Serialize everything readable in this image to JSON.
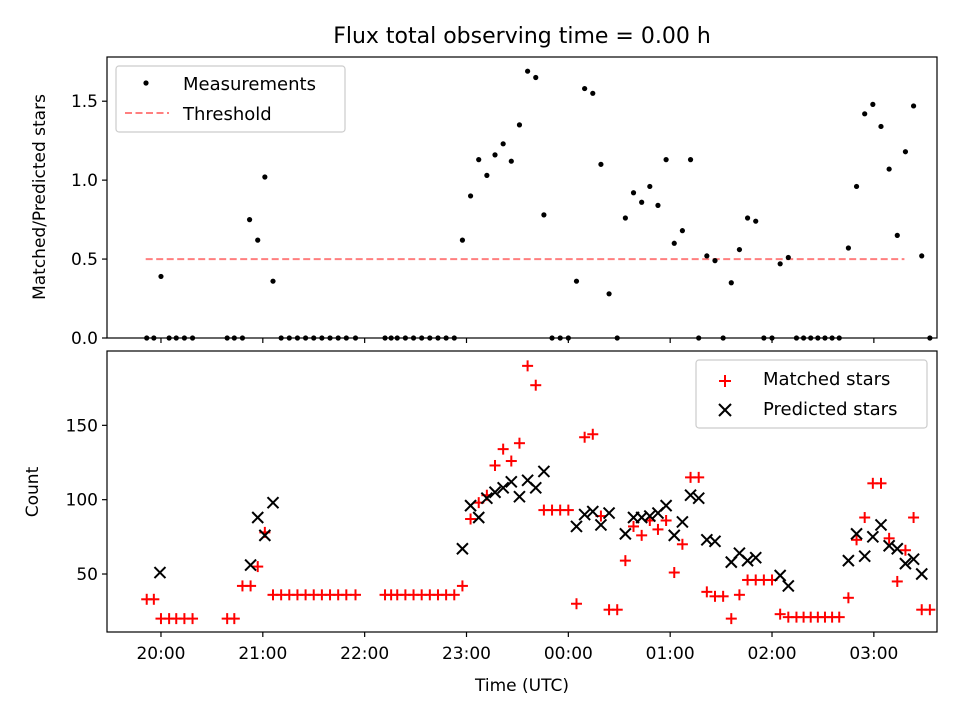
{
  "title": "Flux total observing time = 0.00 h",
  "chart_data": [
    {
      "type": "scatter",
      "ylabel": "Matched/Predicted stars",
      "xlim": [
        19.47,
        27.62
      ],
      "ylim": [
        0,
        1.78
      ],
      "yticks": [
        0.0,
        0.5,
        1.0,
        1.5
      ],
      "ytick_labels": [
        "0.0",
        "0.5",
        "1.0",
        "1.5"
      ],
      "legend_position": "upper left",
      "legend": [
        {
          "label": "Measurements",
          "marker": "dot",
          "color": "#000000"
        },
        {
          "label": "Threshold",
          "marker": "dashed-line",
          "color": "#ff7f7f"
        }
      ],
      "threshold": {
        "value": 0.5,
        "x_range": [
          19.85,
          27.3
        ],
        "color": "#ff7f7f"
      },
      "points": [
        [
          19.86,
          0
        ],
        [
          19.93,
          0
        ],
        [
          20.0,
          0.39
        ],
        [
          20.08,
          0
        ],
        [
          20.15,
          0
        ],
        [
          20.23,
          0
        ],
        [
          20.31,
          0
        ],
        [
          20.65,
          0
        ],
        [
          20.72,
          0
        ],
        [
          20.8,
          0
        ],
        [
          20.87,
          0.75
        ],
        [
          20.95,
          0.62
        ],
        [
          21.02,
          1.02
        ],
        [
          21.1,
          0.36
        ],
        [
          21.18,
          0
        ],
        [
          21.26,
          0
        ],
        [
          21.34,
          0
        ],
        [
          21.42,
          0
        ],
        [
          21.5,
          0
        ],
        [
          21.58,
          0
        ],
        [
          21.66,
          0
        ],
        [
          21.74,
          0
        ],
        [
          21.82,
          0
        ],
        [
          21.91,
          0
        ],
        [
          22.2,
          0
        ],
        [
          22.26,
          0
        ],
        [
          22.32,
          0
        ],
        [
          22.4,
          0
        ],
        [
          22.48,
          0
        ],
        [
          22.56,
          0
        ],
        [
          22.64,
          0
        ],
        [
          22.72,
          0
        ],
        [
          22.8,
          0
        ],
        [
          22.88,
          0
        ],
        [
          22.96,
          0.62
        ],
        [
          23.04,
          0.9
        ],
        [
          23.12,
          1.13
        ],
        [
          23.2,
          1.03
        ],
        [
          23.28,
          1.16
        ],
        [
          23.36,
          1.23
        ],
        [
          23.44,
          1.12
        ],
        [
          23.52,
          1.35
        ],
        [
          23.6,
          1.69
        ],
        [
          23.68,
          1.65
        ],
        [
          23.76,
          0.78
        ],
        [
          23.84,
          0
        ],
        [
          23.92,
          0
        ],
        [
          24.0,
          0
        ],
        [
          24.08,
          0.36
        ],
        [
          24.16,
          1.58
        ],
        [
          24.24,
          1.55
        ],
        [
          24.32,
          1.1
        ],
        [
          24.4,
          0.28
        ],
        [
          24.48,
          0
        ],
        [
          24.56,
          0.76
        ],
        [
          24.64,
          0.92
        ],
        [
          24.72,
          0.86
        ],
        [
          24.8,
          0.96
        ],
        [
          24.88,
          0.84
        ],
        [
          24.96,
          1.13
        ],
        [
          25.04,
          0.6
        ],
        [
          25.12,
          0.68
        ],
        [
          25.2,
          1.13
        ],
        [
          25.28,
          0
        ],
        [
          25.36,
          0.52
        ],
        [
          25.44,
          0.49
        ],
        [
          25.52,
          0
        ],
        [
          25.6,
          0.35
        ],
        [
          25.68,
          0.56
        ],
        [
          25.76,
          0.76
        ],
        [
          25.84,
          0.74
        ],
        [
          25.92,
          0
        ],
        [
          26.0,
          0
        ],
        [
          26.08,
          0.47
        ],
        [
          26.16,
          0.51
        ],
        [
          26.24,
          0
        ],
        [
          26.31,
          0
        ],
        [
          26.38,
          0
        ],
        [
          26.45,
          0
        ],
        [
          26.52,
          0
        ],
        [
          26.59,
          0
        ],
        [
          26.66,
          0
        ],
        [
          26.75,
          0.57
        ],
        [
          26.83,
          0.96
        ],
        [
          26.91,
          1.42
        ],
        [
          26.99,
          1.48
        ],
        [
          27.07,
          1.34
        ],
        [
          27.15,
          1.07
        ],
        [
          27.23,
          0.65
        ],
        [
          27.31,
          1.18
        ],
        [
          27.39,
          1.47
        ],
        [
          27.47,
          0.52
        ],
        [
          27.55,
          0
        ]
      ]
    },
    {
      "type": "scatter",
      "xlabel": "Time (UTC)",
      "ylabel": "Count",
      "xlim": [
        19.47,
        27.62
      ],
      "ylim": [
        11,
        200
      ],
      "yticks": [
        50,
        100,
        150
      ],
      "ytick_labels": [
        "50",
        "100",
        "150"
      ],
      "xticks": [
        20,
        21,
        22,
        23,
        24,
        25,
        26,
        27
      ],
      "xtick_labels": [
        "20:00",
        "21:00",
        "22:00",
        "23:00",
        "00:00",
        "01:00",
        "02:00",
        "03:00"
      ],
      "legend_position": "upper right",
      "series": [
        {
          "name": "Matched stars",
          "marker": "plus",
          "color": "#ff0000",
          "points": [
            [
              19.86,
              33
            ],
            [
              19.93,
              33
            ],
            [
              20.0,
              20
            ],
            [
              20.08,
              20
            ],
            [
              20.15,
              20
            ],
            [
              20.23,
              20
            ],
            [
              20.31,
              20
            ],
            [
              20.65,
              20
            ],
            [
              20.72,
              20
            ],
            [
              20.8,
              42
            ],
            [
              20.88,
              42
            ],
            [
              20.95,
              55
            ],
            [
              21.02,
              78
            ],
            [
              21.1,
              36
            ],
            [
              21.18,
              36
            ],
            [
              21.26,
              36
            ],
            [
              21.34,
              36
            ],
            [
              21.42,
              36
            ],
            [
              21.5,
              36
            ],
            [
              21.58,
              36
            ],
            [
              21.66,
              36
            ],
            [
              21.74,
              36
            ],
            [
              21.82,
              36
            ],
            [
              21.91,
              36
            ],
            [
              22.2,
              36
            ],
            [
              22.26,
              36
            ],
            [
              22.32,
              36
            ],
            [
              22.4,
              36
            ],
            [
              22.48,
              36
            ],
            [
              22.56,
              36
            ],
            [
              22.64,
              36
            ],
            [
              22.72,
              36
            ],
            [
              22.8,
              36
            ],
            [
              22.88,
              36
            ],
            [
              22.96,
              42
            ],
            [
              23.04,
              87
            ],
            [
              23.12,
              98
            ],
            [
              23.2,
              103
            ],
            [
              23.28,
              123
            ],
            [
              23.36,
              134
            ],
            [
              23.44,
              126
            ],
            [
              23.52,
              138
            ],
            [
              23.6,
              190
            ],
            [
              23.68,
              177
            ],
            [
              23.76,
              93
            ],
            [
              23.84,
              93
            ],
            [
              23.92,
              93
            ],
            [
              24.0,
              93
            ],
            [
              24.08,
              30
            ],
            [
              24.16,
              142
            ],
            [
              24.24,
              144
            ],
            [
              24.32,
              89
            ],
            [
              24.4,
              26
            ],
            [
              24.48,
              26
            ],
            [
              24.56,
              59
            ],
            [
              24.64,
              82
            ],
            [
              24.72,
              76
            ],
            [
              24.8,
              86
            ],
            [
              24.88,
              80
            ],
            [
              24.96,
              86
            ],
            [
              25.04,
              51
            ],
            [
              25.12,
              70
            ],
            [
              25.2,
              115
            ],
            [
              25.28,
              115
            ],
            [
              25.36,
              38
            ],
            [
              25.44,
              35
            ],
            [
              25.52,
              35
            ],
            [
              25.6,
              20
            ],
            [
              25.68,
              36
            ],
            [
              25.76,
              46
            ],
            [
              25.84,
              46
            ],
            [
              25.92,
              46
            ],
            [
              26.0,
              46
            ],
            [
              26.08,
              23
            ],
            [
              26.16,
              21
            ],
            [
              26.24,
              21
            ],
            [
              26.31,
              21
            ],
            [
              26.38,
              21
            ],
            [
              26.45,
              21
            ],
            [
              26.52,
              21
            ],
            [
              26.59,
              21
            ],
            [
              26.66,
              21
            ],
            [
              26.75,
              34
            ],
            [
              26.83,
              73
            ],
            [
              26.91,
              88
            ],
            [
              26.99,
              111
            ],
            [
              27.07,
              111
            ],
            [
              27.15,
              74
            ],
            [
              27.23,
              45
            ],
            [
              27.31,
              66
            ],
            [
              27.39,
              88
            ],
            [
              27.47,
              26
            ],
            [
              27.55,
              26
            ]
          ]
        },
        {
          "name": "Predicted stars",
          "marker": "x",
          "color": "#000000",
          "points": [
            [
              19.99,
              51
            ],
            [
              20.88,
              56
            ],
            [
              20.95,
              88
            ],
            [
              21.02,
              76
            ],
            [
              21.1,
              98
            ],
            [
              22.96,
              67
            ],
            [
              23.04,
              96
            ],
            [
              23.12,
              88
            ],
            [
              23.2,
              101
            ],
            [
              23.28,
              105
            ],
            [
              23.36,
              108
            ],
            [
              23.44,
              112
            ],
            [
              23.52,
              102
            ],
            [
              23.6,
              113
            ],
            [
              23.68,
              108
            ],
            [
              23.76,
              119
            ],
            [
              24.08,
              82
            ],
            [
              24.16,
              90
            ],
            [
              24.24,
              92
            ],
            [
              24.32,
              83
            ],
            [
              24.4,
              91
            ],
            [
              24.56,
              77
            ],
            [
              24.64,
              88
            ],
            [
              24.72,
              88
            ],
            [
              24.8,
              89
            ],
            [
              24.88,
              91
            ],
            [
              24.96,
              96
            ],
            [
              25.04,
              76
            ],
            [
              25.12,
              85
            ],
            [
              25.2,
              103
            ],
            [
              25.28,
              101
            ],
            [
              25.36,
              73
            ],
            [
              25.44,
              72
            ],
            [
              25.6,
              58
            ],
            [
              25.68,
              64
            ],
            [
              25.76,
              59
            ],
            [
              25.84,
              61
            ],
            [
              26.08,
              49
            ],
            [
              26.16,
              42
            ],
            [
              26.75,
              59
            ],
            [
              26.83,
              77
            ],
            [
              26.91,
              62
            ],
            [
              26.99,
              75
            ],
            [
              27.07,
              83
            ],
            [
              27.15,
              69
            ],
            [
              27.23,
              67
            ],
            [
              27.31,
              57
            ],
            [
              27.39,
              60
            ],
            [
              27.47,
              50
            ]
          ]
        }
      ]
    }
  ]
}
